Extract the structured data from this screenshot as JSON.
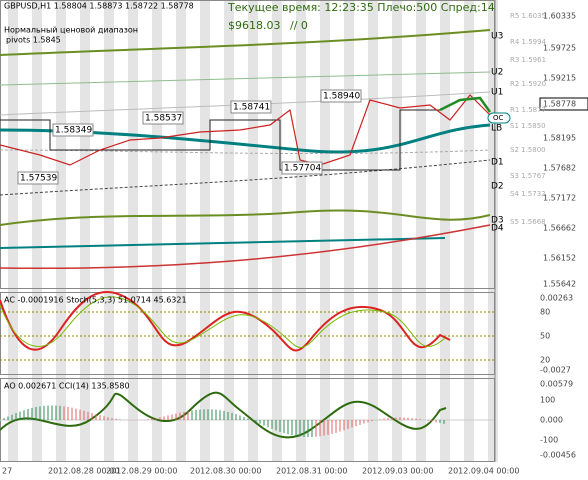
{
  "header": {
    "symbol": "GBPUSD,H1  1.58804 1.58873 1.58722 1.58778",
    "status": "Текущее время: 12:23:35 Плечо:500 Спред:14",
    "balance": "$9618.03",
    "slash": "// 0",
    "range_note": "Нормальный ценовой диапазон",
    "pivots": "pivots 1.5845"
  },
  "price_axis": [
    "1.60335",
    "1.59725",
    "1.59215",
    "1.58778",
    "1.58195",
    "1.57682",
    "1.57172",
    "1.56662",
    "1.56152",
    "1.55642"
  ],
  "pivot_levels": [
    "R5 1.6035",
    "R4 1.5994",
    "R3 1.5961",
    "R2 1.5920",
    "R1 1.5877",
    "S1 1.5850",
    "S2 1.5800",
    "S3 1.5767",
    "S4 1.5732",
    "S5 1.5668"
  ],
  "band_labels": [
    "U3",
    "U2",
    "U1",
    "OC",
    "LB",
    "D1",
    "D2",
    "D3",
    "D4"
  ],
  "price_labels": [
    "1.58349",
    "1.58537",
    "1.58741",
    "1.58940",
    "1.57704",
    "1.57539"
  ],
  "ac_panel": {
    "title": "AC -0.0001916  Stoch(5,3,3) 51.0714 45.6321",
    "axis": [
      "0.00263",
      "80",
      "50",
      "20",
      "-0.0027"
    ]
  },
  "ao_panel": {
    "title": "AO 0.002671  CCI(14) 135.8580",
    "axis": [
      "0.00579",
      "100",
      "0.000",
      "-100",
      "-0.00456"
    ]
  },
  "time_axis": [
    "27",
    "2012.08.28 00:00",
    "2012.08.29 00:00",
    "2012.08.30 00:00",
    "2012.08.31 00:00",
    "2012.09.03 00:00",
    "2012.09.04 00:00"
  ]
}
